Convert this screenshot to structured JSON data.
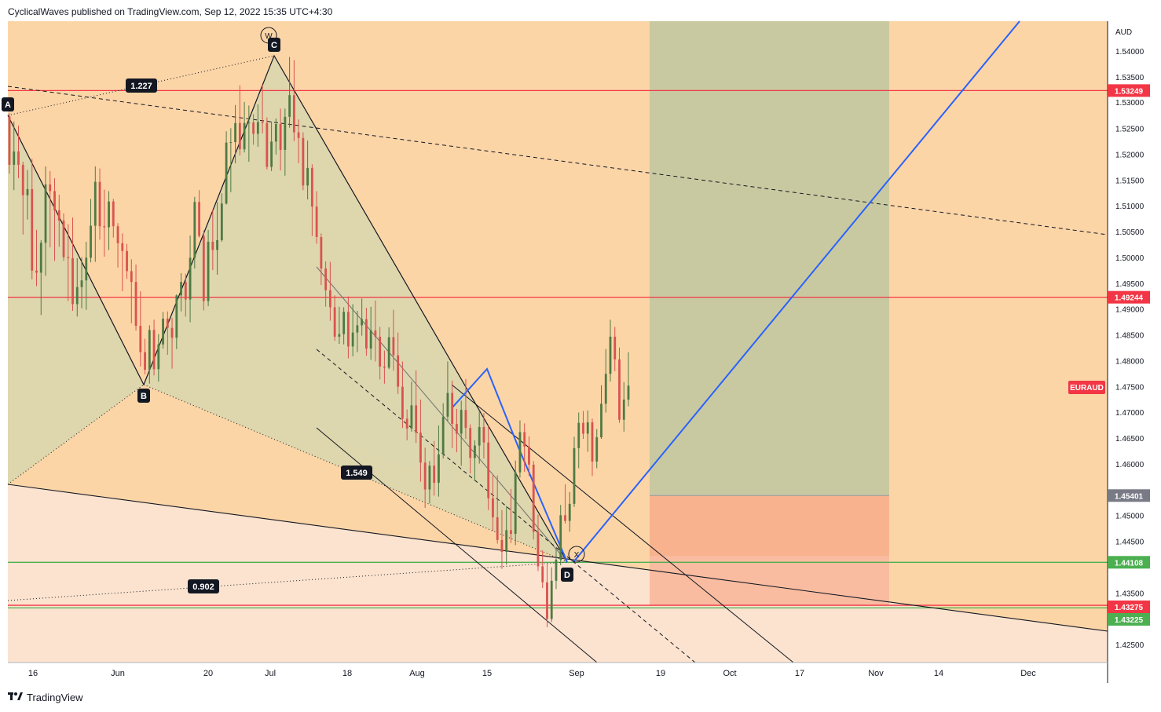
{
  "header": {
    "publisher_text": "CyclicalWaves published on TradingView.com, Sep 12, 2022 15:35 UTC+4:30"
  },
  "footer": {
    "brand_icon": "tradingview-logo-icon",
    "brand": "TradingView"
  },
  "chart_data": {
    "type": "candlestick",
    "symbol": "EURAUD",
    "currency": "AUD",
    "y_axis_ticks": [
      "1.54000",
      "1.53500",
      "1.53000",
      "1.52500",
      "1.52000",
      "1.51500",
      "1.51000",
      "1.50500",
      "1.50000",
      "1.49500",
      "1.49000",
      "1.48500",
      "1.48000",
      "1.47500",
      "1.47000",
      "1.46500",
      "1.46000",
      "1.45000",
      "1.44500",
      "1.43500",
      "1.42500"
    ],
    "ylim": [
      1.4225,
      1.5445
    ],
    "x_axis_ticks": [
      "16",
      "Jun",
      "20",
      "Jul",
      "18",
      "Aug",
      "15",
      "Sep",
      "19",
      "Oct",
      "17",
      "Nov",
      "14",
      "Dec"
    ],
    "grid": false,
    "price_lines": [
      {
        "price": 1.53249,
        "label": "1.53249",
        "color": "#f23645"
      },
      {
        "price": 1.49244,
        "label": "1.49244",
        "color": "#f23645"
      },
      {
        "price": 1.44108,
        "label": "1.44108",
        "color": "#4caf50"
      },
      {
        "price": 1.43275,
        "label": "1.43275",
        "color": "#f23645"
      },
      {
        "price": 1.43225,
        "label": "1.43225",
        "color": "#4caf50"
      }
    ],
    "position": {
      "target": 1.54,
      "entry": 1.45401,
      "stop": 1.43275,
      "entry_label": "1.45401"
    },
    "harmonic_pattern": {
      "points": [
        {
          "label": "A",
          "price": 1.5275
        },
        {
          "label": "B",
          "price": 1.4757
        },
        {
          "label": "C",
          "price": 1.539
        },
        {
          "label": "D",
          "price": 1.4412
        }
      ],
      "ratios": [
        "1.227",
        "1.549",
        "0.902"
      ]
    },
    "wave_labels": [
      "W",
      "X"
    ],
    "symbol_badge": "EURAUD",
    "candles_ohlc": [
      [
        1.5275,
        1.5281,
        1.5164,
        1.5181
      ],
      [
        1.5181,
        1.5265,
        1.5132,
        1.5207
      ],
      [
        1.5207,
        1.5257,
        1.5155,
        1.5181
      ],
      [
        1.5181,
        1.5187,
        1.5046,
        1.5122
      ],
      [
        1.5122,
        1.5171,
        1.5075,
        1.5134
      ],
      [
        1.5134,
        1.5193,
        1.4959,
        1.4976
      ],
      [
        1.4976,
        1.5055,
        1.4946,
        1.4972
      ],
      [
        1.4972,
        1.5035,
        1.489,
        1.503
      ],
      [
        1.503,
        1.5178,
        1.4966,
        1.5143
      ],
      [
        1.5143,
        1.5169,
        1.5021,
        1.513
      ],
      [
        1.513,
        1.5155,
        1.4995,
        1.5093
      ],
      [
        1.5093,
        1.5123,
        1.5022,
        1.5073
      ],
      [
        1.5073,
        1.5087,
        1.4995,
        1.5002
      ],
      [
        1.5002,
        1.5066,
        1.4917,
        1.5
      ],
      [
        1.5,
        1.5079,
        1.4898,
        1.4911
      ],
      [
        1.4911,
        1.5,
        1.4887,
        1.4944
      ],
      [
        1.4944,
        1.5002,
        1.4903,
        1.4957
      ],
      [
        1.4957,
        1.5032,
        1.49,
        1.5001
      ],
      [
        1.5001,
        1.5115,
        1.4992,
        1.5063
      ],
      [
        1.5063,
        1.5178,
        1.4993,
        1.5148
      ],
      [
        1.5148,
        1.5174,
        1.5036,
        1.5062
      ],
      [
        1.5062,
        1.5133,
        1.5003,
        1.506
      ],
      [
        1.506,
        1.513,
        1.5016,
        1.511
      ],
      [
        1.511,
        1.5115,
        1.504,
        1.5062
      ],
      [
        1.5062,
        1.5068,
        1.4982,
        1.5029
      ],
      [
        1.5029,
        1.5048,
        1.4936,
        1.5014
      ],
      [
        1.5014,
        1.5028,
        1.496,
        1.4975
      ],
      [
        1.4975,
        1.4998,
        1.4874,
        1.4954
      ],
      [
        1.4954,
        1.4988,
        1.486,
        1.4869
      ],
      [
        1.4869,
        1.4936,
        1.479,
        1.4818
      ],
      [
        1.4818,
        1.4844,
        1.4775,
        1.4784
      ],
      [
        1.4784,
        1.487,
        1.4757,
        1.4861
      ],
      [
        1.4861,
        1.4881,
        1.4773,
        1.4785
      ],
      [
        1.4785,
        1.4853,
        1.4761,
        1.4833
      ],
      [
        1.4833,
        1.4896,
        1.4825,
        1.4883
      ],
      [
        1.4883,
        1.4897,
        1.4813,
        1.4865
      ],
      [
        1.4865,
        1.4884,
        1.4786,
        1.4846
      ],
      [
        1.4846,
        1.493,
        1.4824,
        1.4928
      ],
      [
        1.4928,
        1.4971,
        1.4897,
        1.4954
      ],
      [
        1.4954,
        1.497,
        1.4887,
        1.492
      ],
      [
        1.492,
        1.5044,
        1.4876,
        1.5001
      ],
      [
        1.5001,
        1.5119,
        1.498,
        1.5109
      ],
      [
        1.5109,
        1.5132,
        1.504,
        1.5043
      ],
      [
        1.5043,
        1.5054,
        1.4899,
        1.4917
      ],
      [
        1.4917,
        1.5055,
        1.4907,
        1.5032
      ],
      [
        1.5032,
        1.5095,
        1.4977,
        1.5016
      ],
      [
        1.5016,
        1.5109,
        1.4968,
        1.5035
      ],
      [
        1.5035,
        1.5126,
        1.5032,
        1.5106
      ],
      [
        1.5106,
        1.5246,
        1.5104,
        1.5224
      ],
      [
        1.5224,
        1.5252,
        1.5128,
        1.5225
      ],
      [
        1.5225,
        1.5297,
        1.5184,
        1.5262
      ],
      [
        1.5262,
        1.5335,
        1.5199,
        1.5211
      ],
      [
        1.5211,
        1.5303,
        1.5205,
        1.5262
      ],
      [
        1.5262,
        1.5296,
        1.5187,
        1.5263
      ],
      [
        1.5263,
        1.5279,
        1.522,
        1.5241
      ],
      [
        1.5241,
        1.5298,
        1.5216,
        1.5264
      ],
      [
        1.5264,
        1.5336,
        1.5242,
        1.5262
      ],
      [
        1.5262,
        1.5273,
        1.5172,
        1.5177
      ],
      [
        1.5177,
        1.5265,
        1.5169,
        1.5226
      ],
      [
        1.5226,
        1.5271,
        1.5201,
        1.526
      ],
      [
        1.526,
        1.529,
        1.517,
        1.521
      ],
      [
        1.521,
        1.529,
        1.516,
        1.5274
      ],
      [
        1.5274,
        1.539,
        1.5253,
        1.5316
      ],
      [
        1.5316,
        1.5384,
        1.5227,
        1.5244
      ],
      [
        1.5244,
        1.5269,
        1.5184,
        1.5233
      ],
      [
        1.5233,
        1.5244,
        1.5132,
        1.5141
      ],
      [
        1.5141,
        1.5228,
        1.5114,
        1.5175
      ],
      [
        1.5175,
        1.5182,
        1.5043,
        1.51
      ],
      [
        1.51,
        1.513,
        1.5028,
        1.5041
      ],
      [
        1.5041,
        1.5048,
        1.4948,
        1.498
      ],
      [
        1.498,
        1.4994,
        1.4906,
        1.4938
      ],
      [
        1.4938,
        1.4993,
        1.4879,
        1.4905
      ],
      [
        1.4905,
        1.4928,
        1.484,
        1.4848
      ],
      [
        1.4848,
        1.4906,
        1.4834,
        1.4853
      ],
      [
        1.4853,
        1.4905,
        1.4833,
        1.4896
      ],
      [
        1.4896,
        1.4926,
        1.4806,
        1.4829
      ],
      [
        1.4829,
        1.4911,
        1.481,
        1.4856
      ],
      [
        1.4856,
        1.4898,
        1.4818,
        1.487
      ],
      [
        1.487,
        1.4922,
        1.485,
        1.4882
      ],
      [
        1.4882,
        1.4904,
        1.4811,
        1.4825
      ],
      [
        1.4825,
        1.4906,
        1.4803,
        1.486
      ],
      [
        1.486,
        1.4918,
        1.48,
        1.4848
      ],
      [
        1.4848,
        1.4867,
        1.4765,
        1.479
      ],
      [
        1.479,
        1.4821,
        1.4757,
        1.4788
      ],
      [
        1.4788,
        1.4866,
        1.4785,
        1.4847
      ],
      [
        1.4847,
        1.49,
        1.4782,
        1.4812
      ],
      [
        1.4812,
        1.4856,
        1.4737,
        1.4751
      ],
      [
        1.4751,
        1.48,
        1.4671,
        1.4689
      ],
      [
        1.4689,
        1.4707,
        1.4647,
        1.467
      ],
      [
        1.467,
        1.4761,
        1.4664,
        1.4715
      ],
      [
        1.4715,
        1.4783,
        1.4642,
        1.4662
      ],
      [
        1.4662,
        1.4726,
        1.4567,
        1.4604
      ],
      [
        1.4604,
        1.4633,
        1.4516,
        1.4552
      ],
      [
        1.4552,
        1.4607,
        1.4525,
        1.4598
      ],
      [
        1.4598,
        1.4646,
        1.454,
        1.4565
      ],
      [
        1.4565,
        1.4676,
        1.4538,
        1.462
      ],
      [
        1.462,
        1.4719,
        1.4612,
        1.4693
      ],
      [
        1.4693,
        1.48,
        1.4685,
        1.4739
      ],
      [
        1.4739,
        1.4763,
        1.4632,
        1.4679
      ],
      [
        1.4679,
        1.4708,
        1.4624,
        1.466
      ],
      [
        1.466,
        1.4724,
        1.4598,
        1.4706
      ],
      [
        1.4706,
        1.4766,
        1.465,
        1.4671
      ],
      [
        1.4671,
        1.4678,
        1.4583,
        1.4613
      ],
      [
        1.4613,
        1.4647,
        1.4568,
        1.4637
      ],
      [
        1.4637,
        1.4705,
        1.4602,
        1.4673
      ],
      [
        1.4673,
        1.47,
        1.4612,
        1.4643
      ],
      [
        1.4643,
        1.4676,
        1.4512,
        1.4535
      ],
      [
        1.4535,
        1.4581,
        1.4472,
        1.4498
      ],
      [
        1.4498,
        1.4579,
        1.4447,
        1.4454
      ],
      [
        1.4454,
        1.4512,
        1.4398,
        1.4431
      ],
      [
        1.4431,
        1.452,
        1.4406,
        1.4473
      ],
      [
        1.4473,
        1.4553,
        1.4448,
        1.4466
      ],
      [
        1.4466,
        1.4608,
        1.4444,
        1.4585
      ],
      [
        1.4585,
        1.4686,
        1.4575,
        1.4663
      ],
      [
        1.4663,
        1.468,
        1.4586,
        1.4635
      ],
      [
        1.4635,
        1.4655,
        1.4578,
        1.46
      ],
      [
        1.46,
        1.4607,
        1.4455,
        1.447
      ],
      [
        1.447,
        1.4503,
        1.4394,
        1.4403
      ],
      [
        1.4403,
        1.4434,
        1.4361,
        1.4372
      ],
      [
        1.4372,
        1.441,
        1.4285,
        1.4301
      ],
      [
        1.4301,
        1.4401,
        1.4295,
        1.4375
      ],
      [
        1.4375,
        1.4439,
        1.4359,
        1.4416
      ],
      [
        1.4416,
        1.4522,
        1.4405,
        1.4502
      ],
      [
        1.4502,
        1.4562,
        1.4486,
        1.4491
      ],
      [
        1.4491,
        1.4547,
        1.447,
        1.4524
      ],
      [
        1.4524,
        1.4654,
        1.4518,
        1.4632
      ],
      [
        1.4632,
        1.4701,
        1.4593,
        1.4681
      ],
      [
        1.4681,
        1.4704,
        1.465,
        1.466
      ],
      [
        1.466,
        1.4705,
        1.4625,
        1.4682
      ],
      [
        1.4682,
        1.4689,
        1.4578,
        1.4606
      ],
      [
        1.4606,
        1.4669,
        1.4593,
        1.4653
      ],
      [
        1.4653,
        1.4754,
        1.465,
        1.4718
      ],
      [
        1.4718,
        1.4824,
        1.4701,
        1.4776
      ],
      [
        1.4776,
        1.4881,
        1.4761,
        1.4848
      ],
      [
        1.4848,
        1.4867,
        1.4781,
        1.4804
      ],
      [
        1.4804,
        1.4827,
        1.4681,
        1.4687
      ],
      [
        1.4687,
        1.476,
        1.4664,
        1.4726
      ],
      [
        1.4726,
        1.4818,
        1.4713,
        1.4753
      ]
    ]
  }
}
